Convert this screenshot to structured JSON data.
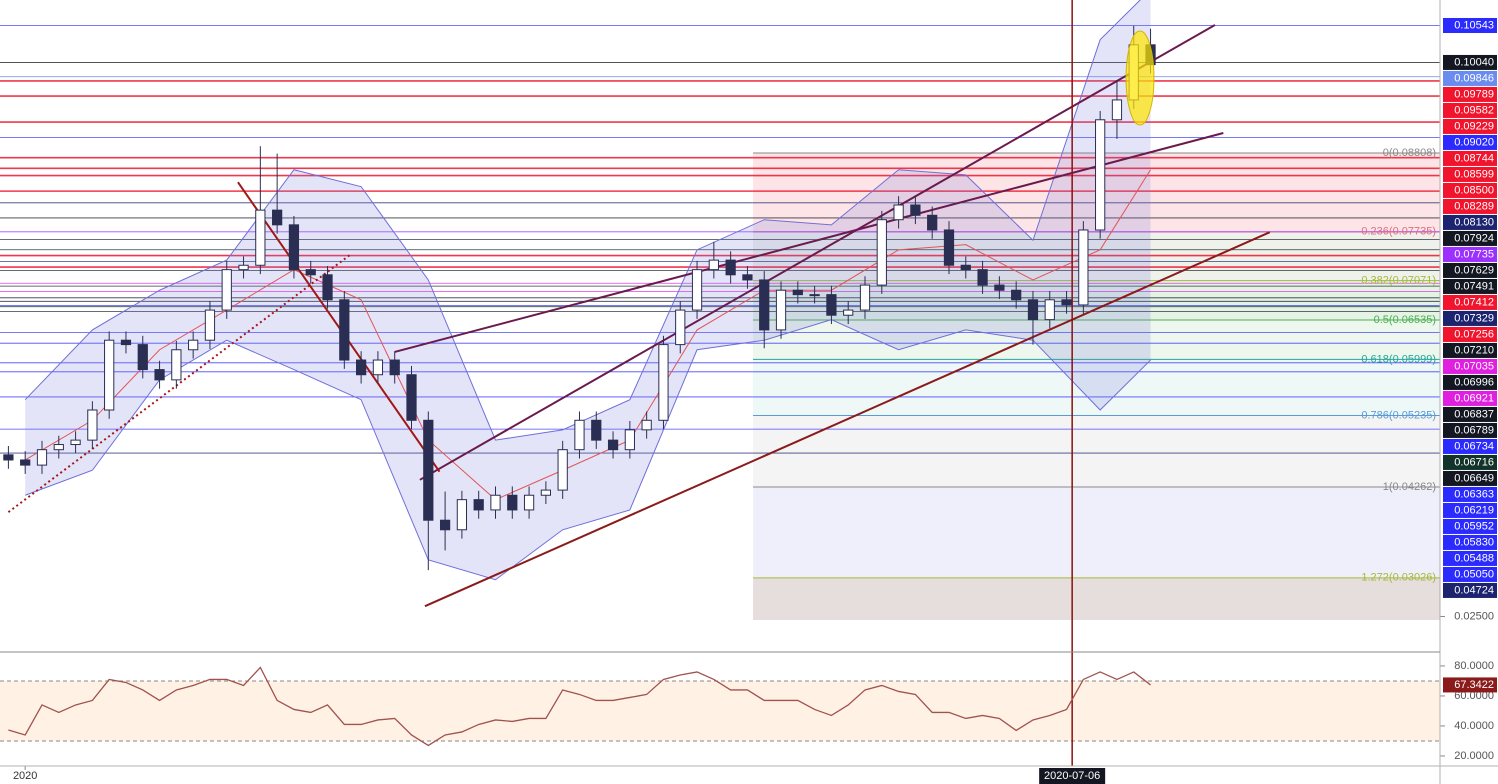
{
  "chart_data": {
    "type": "candlestick",
    "x": [
      -3,
      0,
      3,
      6,
      9,
      12,
      15,
      18,
      21,
      24,
      27,
      30,
      33,
      36,
      39,
      42,
      45,
      48,
      51,
      54,
      57,
      60,
      63,
      66,
      69,
      72,
      75,
      78,
      81,
      84,
      87,
      90,
      93,
      96,
      99,
      102,
      105,
      108,
      111,
      114,
      117,
      120,
      123,
      126,
      129,
      132,
      135,
      138,
      141,
      144,
      147,
      150,
      153,
      156,
      159,
      162,
      165,
      168,
      171,
      174,
      177,
      180,
      183,
      186,
      189,
      192,
      195,
      198,
      201
    ],
    "open": [
      0.047,
      0.0463,
      0.0456,
      0.0477,
      0.0484,
      0.049,
      0.0531,
      0.0626,
      0.062,
      0.0586,
      0.0572,
      0.0613,
      0.0626,
      0.0667,
      0.0722,
      0.0728,
      0.0803,
      0.0783,
      0.0722,
      0.0715,
      0.0681,
      0.0599,
      0.0579,
      0.0599,
      0.0579,
      0.0517,
      0.0381,
      0.0368,
      0.0409,
      0.0395,
      0.0415,
      0.0395,
      0.0415,
      0.0422,
      0.0477,
      0.0517,
      0.049,
      0.0477,
      0.0504,
      0.0517,
      0.062,
      0.0667,
      0.0722,
      0.0735,
      0.0715,
      0.0708,
      0.064,
      0.0694,
      0.0688,
      0.0688,
      0.066,
      0.0667,
      0.0701,
      0.079,
      0.081,
      0.0796,
      0.0776,
      0.0728,
      0.0722,
      0.0701,
      0.0694,
      0.0681,
      0.0654,
      0.0681,
      0.0674,
      0.0776,
      0.0926,
      0.0953,
      0.1028
    ],
    "high": [
      0.0482,
      0.0475,
      0.0489,
      0.0496,
      0.0502,
      0.0543,
      0.0638,
      0.0638,
      0.0632,
      0.0598,
      0.0625,
      0.0638,
      0.0679,
      0.0734,
      0.074,
      0.089,
      0.088,
      0.0795,
      0.0734,
      0.0727,
      0.0693,
      0.0611,
      0.0611,
      0.0611,
      0.0591,
      0.0529,
      0.042,
      0.0421,
      0.0421,
      0.0427,
      0.0427,
      0.0427,
      0.0434,
      0.0489,
      0.0529,
      0.0529,
      0.0502,
      0.0516,
      0.0529,
      0.0632,
      0.0679,
      0.0734,
      0.076,
      0.0747,
      0.0727,
      0.072,
      0.0706,
      0.0706,
      0.07,
      0.07,
      0.0679,
      0.0713,
      0.0802,
      0.0822,
      0.0822,
      0.0808,
      0.0788,
      0.074,
      0.0734,
      0.0713,
      0.0706,
      0.0693,
      0.0693,
      0.0693,
      0.0788,
      0.0938,
      0.098,
      0.1054,
      0.105
    ],
    "low": [
      0.0451,
      0.0444,
      0.0444,
      0.0465,
      0.0472,
      0.0478,
      0.0519,
      0.0608,
      0.0574,
      0.056,
      0.056,
      0.0601,
      0.0614,
      0.0655,
      0.071,
      0.0716,
      0.0771,
      0.071,
      0.0703,
      0.0669,
      0.0587,
      0.0567,
      0.0567,
      0.0567,
      0.0505,
      0.0313,
      0.034,
      0.0356,
      0.0383,
      0.0383,
      0.0383,
      0.0383,
      0.0403,
      0.041,
      0.0465,
      0.0478,
      0.0465,
      0.0465,
      0.0492,
      0.0505,
      0.0608,
      0.0655,
      0.071,
      0.0703,
      0.0696,
      0.0615,
      0.0628,
      0.0676,
      0.0676,
      0.0648,
      0.0648,
      0.0655,
      0.0689,
      0.0778,
      0.0784,
      0.0764,
      0.0716,
      0.071,
      0.0689,
      0.0682,
      0.0669,
      0.062,
      0.0642,
      0.0662,
      0.0662,
      0.0764,
      0.09,
      0.0941,
      0.0989
    ],
    "close": [
      0.0463,
      0.0456,
      0.0477,
      0.0484,
      0.049,
      0.0531,
      0.0626,
      0.062,
      0.0586,
      0.0572,
      0.0613,
      0.0626,
      0.0667,
      0.0722,
      0.0728,
      0.0803,
      0.0783,
      0.0722,
      0.0715,
      0.0681,
      0.0599,
      0.0579,
      0.0599,
      0.0579,
      0.0517,
      0.0381,
      0.0368,
      0.0409,
      0.0395,
      0.0415,
      0.0395,
      0.0415,
      0.0422,
      0.0477,
      0.0517,
      0.049,
      0.0477,
      0.0504,
      0.0517,
      0.062,
      0.0667,
      0.0722,
      0.0735,
      0.0715,
      0.0708,
      0.064,
      0.0694,
      0.0688,
      0.0688,
      0.066,
      0.0667,
      0.0701,
      0.079,
      0.081,
      0.0796,
      0.0776,
      0.0728,
      0.0722,
      0.0701,
      0.0694,
      0.0681,
      0.0654,
      0.0681,
      0.0674,
      0.0776,
      0.0926,
      0.0953,
      0.1028,
      0.1001
    ],
    "up_color": "#ffffff",
    "down_color": "#2a2e52",
    "xlim": [
      -4.5,
      252.7
    ],
    "ylim": [
      0.02452,
      0.1089
    ],
    "xticks": [
      {
        "value": 0,
        "label": "2020"
      }
    ],
    "yticks": [
      {
        "value": 0.025,
        "label": "0.02500"
      }
    ],
    "crosshair": {
      "x": 187,
      "label": "2020-07-06",
      "color": "#8b1010"
    },
    "bollinger": {
      "x": [
        0,
        12,
        24,
        36,
        48,
        60,
        72,
        84,
        96,
        108,
        120,
        132,
        144,
        156,
        168,
        180,
        192,
        201
      ],
      "upper": [
        0.0545,
        0.064,
        0.0694,
        0.0735,
        0.0858,
        0.0835,
        0.0708,
        0.049,
        0.0504,
        0.0545,
        0.0749,
        0.079,
        0.0783,
        0.0858,
        0.0851,
        0.0762,
        0.1035,
        0.1103
      ],
      "lower": [
        0.0415,
        0.0449,
        0.0572,
        0.0626,
        0.0586,
        0.0545,
        0.0327,
        0.03,
        0.0368,
        0.0395,
        0.0613,
        0.0626,
        0.0654,
        0.0613,
        0.064,
        0.0626,
        0.0531,
        0.0599
      ],
      "basis": [
        0.0463,
        0.0517,
        0.0613,
        0.0667,
        0.0722,
        0.0681,
        0.049,
        0.0409,
        0.0449,
        0.049,
        0.064,
        0.0694,
        0.0694,
        0.0749,
        0.0756,
        0.0708,
        0.0749,
        0.0858
      ],
      "color": "#6f6fd8",
      "fill": "rgba(120,120,220,0.2)",
      "basis_color": "#e05555"
    },
    "trendlines": [
      {
        "x": [
          71.4,
          222.3
        ],
        "y": [
          0.0264,
          0.0773
        ],
        "color": "#8b1a1a",
        "dashed": false
      },
      {
        "x": [
          70.5,
          212.5
        ],
        "y": [
          0.0436,
          0.1055
        ],
        "color": "#6a1b4d",
        "dashed": false
      },
      {
        "x": [
          66,
          214
        ],
        "y": [
          0.061,
          0.0908
        ],
        "color": "#6a1b4d",
        "dashed": false
      },
      {
        "x": [
          38,
          74
        ],
        "y": [
          0.0841,
          0.0447
        ],
        "color": "#a01818",
        "dashed": false
      },
      {
        "x": [
          -3,
          58
        ],
        "y": [
          0.0392,
          0.0742
        ],
        "color": "#a01818",
        "dashed": true
      }
    ],
    "fib_start_x": 130,
    "fib_levels": [
      {
        "value": 0.08808,
        "label": "0(0.08808)",
        "color": "#888888",
        "fill": "rgba(242,54,69,0.13)"
      },
      {
        "value": 0.07735,
        "label": "0.236(0.07735)",
        "color": "#e06f7a",
        "fill": "rgba(150,160,120,0.15)"
      },
      {
        "value": 0.07071,
        "label": "0.382(0.07071)",
        "color": "#a5b93c",
        "fill": "rgba(76,175,80,0.15)"
      },
      {
        "value": 0.06535,
        "label": "0.5(0.06535)",
        "color": "#4caf50",
        "fill": "rgba(76,175,80,0.1)"
      },
      {
        "value": 0.05999,
        "label": "0.618(0.05999)",
        "color": "#26a69a",
        "fill": "rgba(38,166,154,0.08)"
      },
      {
        "value": 0.05235,
        "label": "0.786(0.05235)",
        "color": "#5b9bd5",
        "fill": "rgba(150,150,150,0.1)"
      },
      {
        "value": 0.04262,
        "label": "1(0.04262)",
        "color": "#888888",
        "fill": "rgba(120,120,220,0.12)"
      },
      {
        "value": 0.03026,
        "label": "1.272(0.03026)",
        "color": "#a5b93c",
        "fill": "rgba(140,100,100,0.22)"
      }
    ],
    "price_labels": [
      {
        "value": 0.10543,
        "label": "0.10543",
        "color": "#2b2bff"
      },
      {
        "value": 0.1004,
        "label": "0.10040",
        "color": "#131722"
      },
      {
        "value": 0.09846,
        "label": "0.09846",
        "color": "#6b8cef"
      },
      {
        "value": 0.09789,
        "label": "0.09789",
        "color": "#f0142d"
      },
      {
        "value": 0.09582,
        "label": "0.09582",
        "color": "#f0142d"
      },
      {
        "value": 0.09229,
        "label": "0.09229",
        "color": "#f0142d"
      },
      {
        "value": 0.0902,
        "label": "0.09020",
        "color": "#2b2bff"
      },
      {
        "value": 0.08744,
        "label": "0.08744",
        "color": "#f0142d"
      },
      {
        "value": 0.08599,
        "label": "0.08599",
        "color": "#f0142d"
      },
      {
        "value": 0.085,
        "label": "0.08500",
        "color": "#f0142d"
      },
      {
        "value": 0.08289,
        "label": "0.08289",
        "color": "#f0142d"
      },
      {
        "value": 0.0813,
        "label": "0.08130",
        "color": "#1c2470"
      },
      {
        "value": 0.07924,
        "label": "0.07924",
        "color": "#131722"
      },
      {
        "value": 0.07735,
        "label": "0.07735",
        "color": "#9b30ff"
      },
      {
        "value": 0.07629,
        "label": "0.07629",
        "color": "#131722"
      },
      {
        "value": 0.07491,
        "label": "0.07491",
        "color": "#131722"
      },
      {
        "value": 0.07412,
        "label": "0.07412",
        "color": "#f0142d"
      },
      {
        "value": 0.07329,
        "label": "0.07329",
        "color": "#1c2470"
      },
      {
        "value": 0.07256,
        "label": "0.07256",
        "color": "#f0142d"
      },
      {
        "value": 0.0721,
        "label": "0.07210",
        "color": "#131722"
      },
      {
        "value": 0.07035,
        "label": "0.07035",
        "color": "#e020e0"
      },
      {
        "value": 0.06996,
        "label": "0.06996",
        "color": "#131722"
      },
      {
        "value": 0.06921,
        "label": "0.06921",
        "color": "#e020e0"
      },
      {
        "value": 0.06837,
        "label": "0.06837",
        "color": "#131722"
      },
      {
        "value": 0.06789,
        "label": "0.06789",
        "color": "#131722"
      },
      {
        "value": 0.06734,
        "label": "0.06734",
        "color": "#2b2bff"
      },
      {
        "value": 0.06716,
        "label": "0.06716",
        "color": "#12332a"
      },
      {
        "value": 0.06649,
        "label": "0.06649",
        "color": "#131722"
      },
      {
        "value": 0.06363,
        "label": "0.06363",
        "color": "#2b2bff"
      },
      {
        "value": 0.06219,
        "label": "0.06219",
        "color": "#2b2bff"
      },
      {
        "value": 0.05952,
        "label": "0.05952",
        "color": "#2b2bff"
      },
      {
        "value": 0.0583,
        "label": "0.05830",
        "color": "#2b2bff"
      },
      {
        "value": 0.05488,
        "label": "0.05488",
        "color": "#2b2bff"
      },
      {
        "value": 0.0505,
        "label": "0.05050",
        "color": "#2b2bff"
      },
      {
        "value": 0.04724,
        "label": "0.04724",
        "color": "#1c2470"
      }
    ],
    "rsi": {
      "values": [
        37.3,
        34,
        54,
        49,
        54,
        57,
        71,
        69,
        64,
        57,
        64,
        67,
        71,
        71,
        67,
        79,
        57,
        51,
        49,
        54,
        41,
        41,
        44,
        45,
        34,
        27,
        34,
        36,
        41,
        44,
        43,
        45,
        45,
        64,
        61,
        57,
        57,
        59,
        61,
        71,
        74,
        76,
        71,
        64,
        64,
        57,
        57,
        57,
        51,
        47,
        54,
        64,
        67,
        63,
        61,
        49,
        49,
        45,
        47,
        45,
        37,
        44,
        47,
        51,
        71,
        76,
        71,
        76,
        67.3422
      ],
      "value_label": "67.3422",
      "color": "#a0524d",
      "label_color": "#8b1a1a",
      "ylim": [
        13.3,
        89.3
      ],
      "yticks": [
        {
          "value": 20,
          "label": "20.0000"
        },
        {
          "value": 40,
          "label": "40.0000"
        },
        {
          "value": 60,
          "label": "60.0000"
        },
        {
          "value": 80,
          "label": "80.0000"
        }
      ],
      "levels": [
        30,
        70
      ],
      "fill": "rgba(255,170,80,0.15)"
    }
  }
}
